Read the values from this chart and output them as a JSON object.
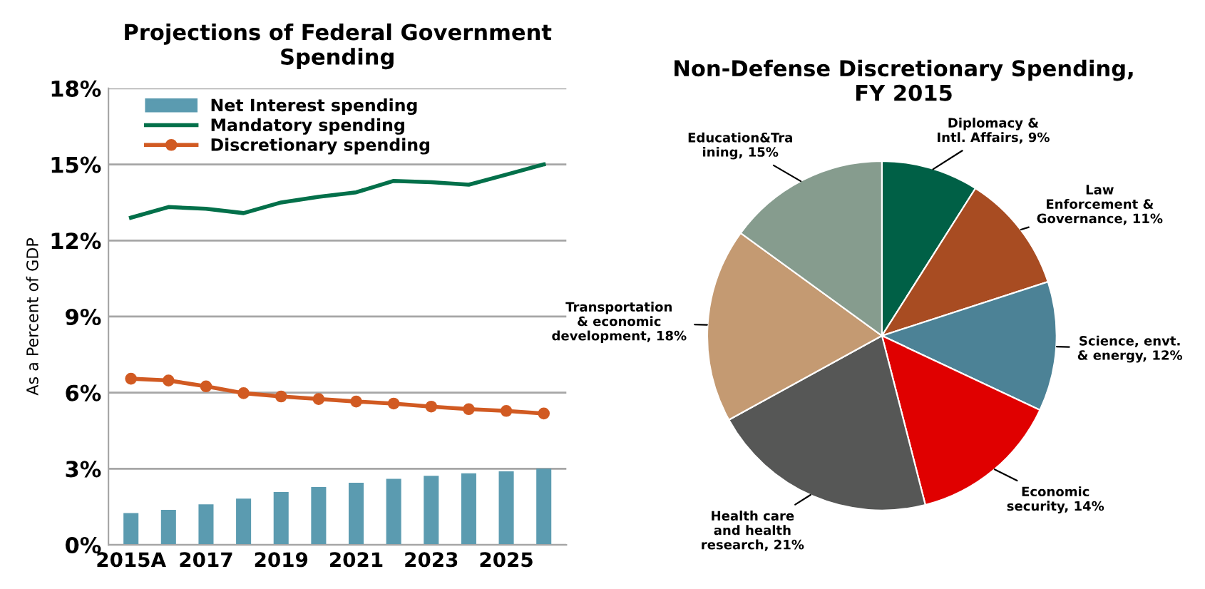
{
  "chart_data": [
    {
      "type": "bar",
      "title": "Projections of Federal Government\nSpending",
      "ylabel": "As a Percent of GDP",
      "categories": [
        "2015A",
        null,
        "2017",
        null,
        "2019",
        null,
        "2021",
        null,
        "2023",
        null,
        "2025",
        null
      ],
      "series": [
        {
          "name": "Net Interest spending",
          "type": "bar",
          "color": "#5b9bb0",
          "values": [
            1.25,
            1.38,
            1.6,
            1.82,
            2.08,
            2.28,
            2.45,
            2.6,
            2.72,
            2.82,
            2.9,
            3.0
          ]
        },
        {
          "name": "Mandatory spending",
          "type": "line",
          "color": "#03704a",
          "marker": "none",
          "values": [
            12.9,
            13.32,
            13.25,
            13.08,
            13.5,
            13.72,
            13.9,
            14.35,
            14.3,
            14.2,
            14.6,
            15.0
          ]
        },
        {
          "name": "Discretionary spending",
          "type": "line",
          "color": "#d15a22",
          "marker": "circle",
          "values": [
            6.55,
            6.48,
            6.25,
            5.98,
            5.85,
            5.75,
            5.65,
            5.57,
            5.45,
            5.35,
            5.28,
            5.18
          ]
        }
      ],
      "ylim": [
        0,
        18
      ],
      "yticks": [
        {
          "value": 0,
          "label": "0%"
        },
        {
          "value": 3,
          "label": "3%"
        },
        {
          "value": 6,
          "label": "6%"
        },
        {
          "value": 9,
          "label": "9%"
        },
        {
          "value": 12,
          "label": "12%"
        },
        {
          "value": 15,
          "label": "15%"
        },
        {
          "value": 18,
          "label": "18%"
        }
      ],
      "grid": "y",
      "legend": "top left"
    },
    {
      "type": "pie",
      "title": "Non-Defense Discretionary Spending,\nFY 2015",
      "categories": [
        "Diplomacy &\nIntl. Affairs",
        "Law\nEnforcement &\nGovernance",
        "Science, envt.\n& energy",
        "Economic\nsecurity",
        "Health care\nand health\nresearch",
        "Transportation\n& economic\ndevelopment",
        "Education&Tra\nining"
      ],
      "values": [
        9,
        11,
        12,
        14,
        21,
        18,
        15
      ],
      "value_labels": [
        "9%",
        "11%",
        "12%",
        "14%",
        "21%",
        "18%",
        "15%"
      ],
      "colors": [
        "#006046",
        "#a84c22",
        "#4c8296",
        "#e00000",
        "#565756",
        "#c49a72",
        "#869c8e"
      ]
    }
  ]
}
